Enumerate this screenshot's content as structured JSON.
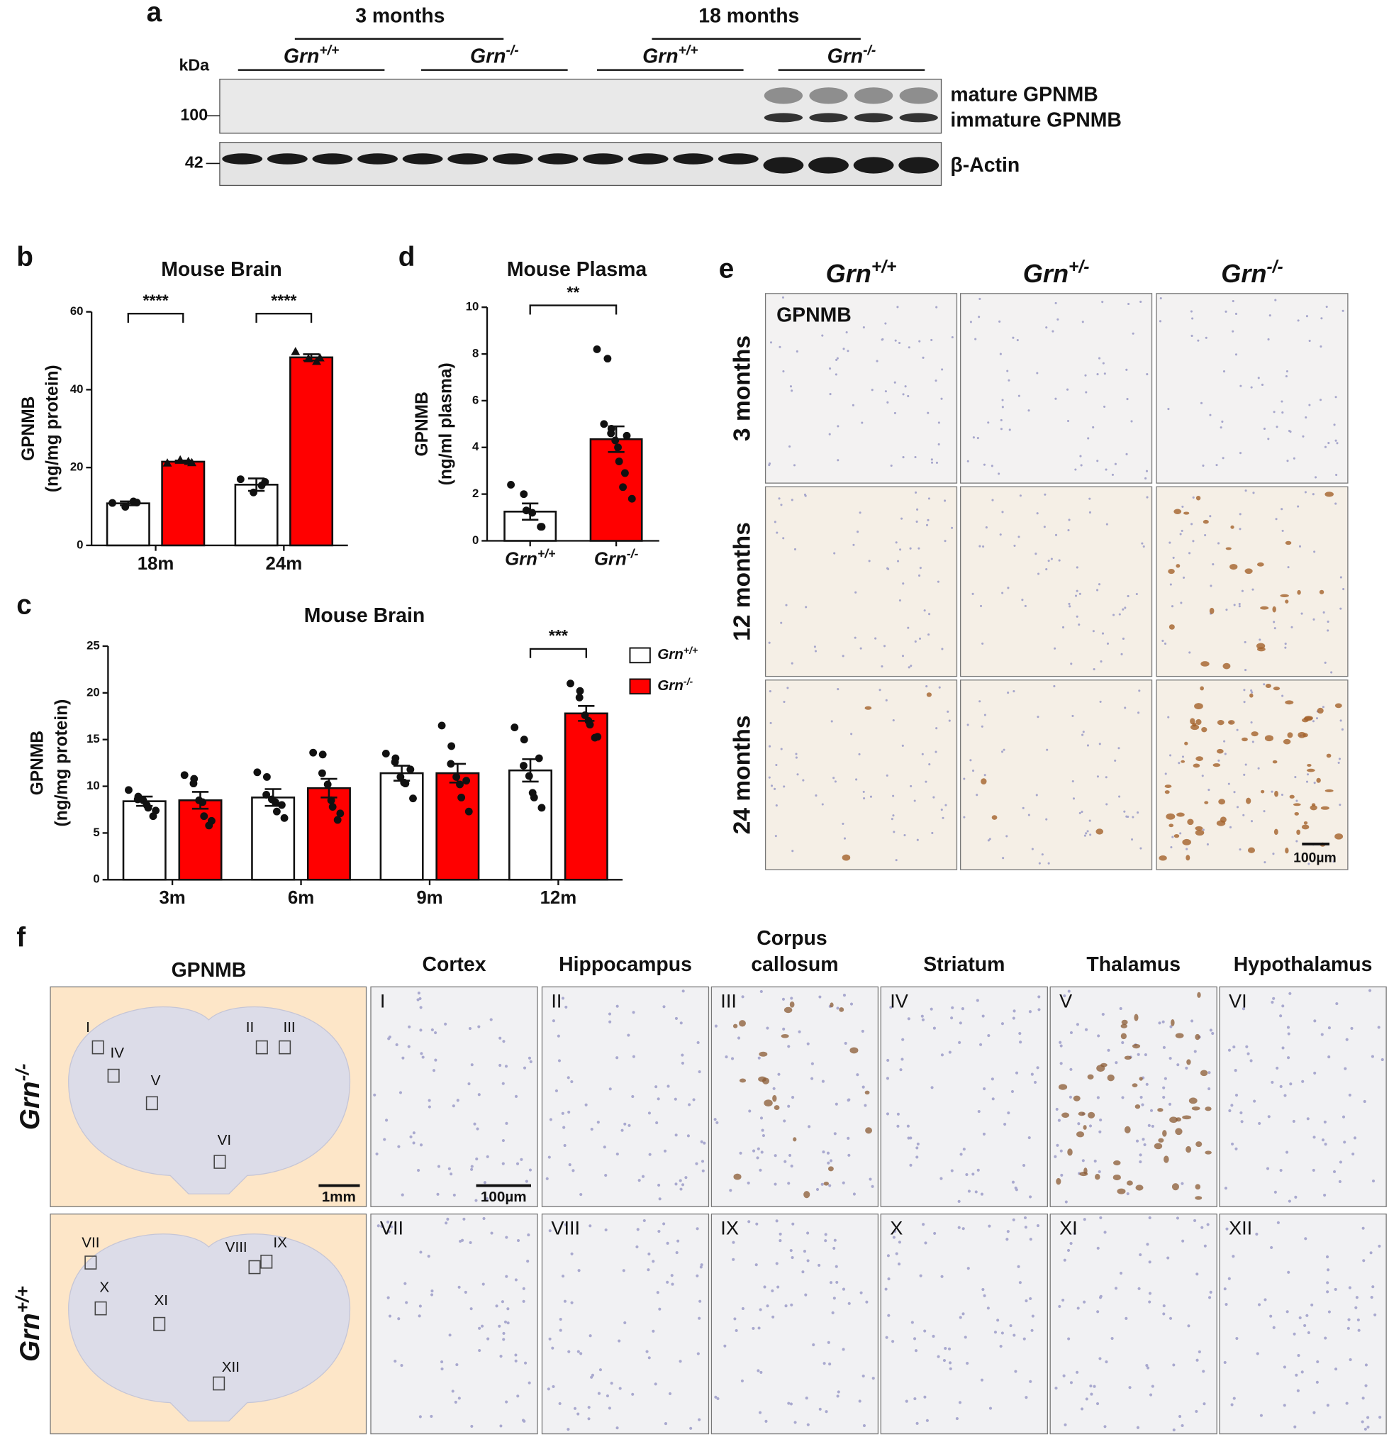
{
  "panel_labels": [
    "a",
    "b",
    "c",
    "d",
    "e",
    "f"
  ],
  "blot": {
    "kda": "kDa",
    "groups": [
      "3 months",
      "18 months"
    ],
    "genotypes": [
      "Grn+/+",
      "Grn-/-",
      "Grn+/+",
      "Grn-/-"
    ],
    "markers": [
      "100",
      "42"
    ],
    "bands": [
      "mature GPNMB",
      "immature GPNMB",
      "β-Actin"
    ]
  },
  "chart_data": [
    {
      "type": "bar",
      "title": "Mouse Brain",
      "y_label": [
        "GPNMB",
        "(ng/mg protein)"
      ],
      "categories": [
        "18m",
        "24m"
      ],
      "series": [
        {
          "color": "#ffffff",
          "marker": "circle",
          "values": [
            10.8,
            15.6
          ],
          "errors": [
            0.5,
            1.6
          ],
          "points": [
            [
              10.9,
              9.9,
              11.3,
              11.0
            ],
            [
              17.0,
              13.6,
              15.4,
              16.3
            ]
          ]
        },
        {
          "color": "#ff0000",
          "marker": "triangle",
          "values": [
            21.5,
            48.3
          ],
          "errors": [
            0.3,
            0.8
          ],
          "points": [
            [
              21.2,
              22.0,
              21.6,
              21.3
            ],
            [
              49.8,
              48.0,
              47.3,
              48.2
            ]
          ]
        }
      ],
      "significance": [
        "****",
        "****"
      ],
      "ylim": [
        0,
        60
      ],
      "yticks": [
        0,
        20,
        40,
        60
      ],
      "legend": false
    },
    {
      "type": "bar",
      "title": "Mouse Brain",
      "y_label": [
        "GPNMB",
        "(ng/mg protein)"
      ],
      "categories": [
        "3m",
        "6m",
        "9m",
        "12m"
      ],
      "series": [
        {
          "name": "Grn+/+",
          "color": "#ffffff",
          "marker": "circle",
          "values": [
            8.4,
            8.8,
            11.4,
            11.7
          ],
          "errors": [
            0.5,
            0.9,
            0.8,
            1.2
          ],
          "points": [
            [
              9.6,
              8.9,
              8.6,
              8.5,
              8.0,
              7.7,
              7.4,
              6.8
            ],
            [
              11.5,
              11.0,
              9.1,
              8.6,
              8.3,
              7.3,
              6.6,
              8.0
            ],
            [
              13.5,
              13.0,
              12.6,
              11.0,
              10.4,
              10.3,
              8.7,
              11.8
            ],
            [
              16.3,
              15.0,
              12.2,
              11.1,
              9.3,
              8.8,
              7.7,
              13.0
            ]
          ]
        },
        {
          "name": "Grn-/-",
          "color": "#ff0000",
          "marker": "circle",
          "values": [
            8.5,
            9.8,
            11.4,
            17.8
          ],
          "errors": [
            0.9,
            1.0,
            1.0,
            0.8
          ],
          "points": [
            [
              11.2,
              10.8,
              10.3,
              8.5,
              8.3,
              6.8,
              6.3,
              5.8
            ],
            [
              13.6,
              13.4,
              11.4,
              10.2,
              8.5,
              7.8,
              7.1,
              6.4
            ],
            [
              16.5,
              14.3,
              12.4,
              11.0,
              10.2,
              8.8,
              7.3,
              10.6
            ],
            [
              21.0,
              20.2,
              19.5,
              17.6,
              17.0,
              16.6,
              15.3,
              15.2
            ]
          ]
        }
      ],
      "significance": [
        null,
        null,
        null,
        "***"
      ],
      "ylim": [
        0,
        25
      ],
      "yticks": [
        0,
        5,
        10,
        15,
        20,
        25
      ],
      "legend": true
    },
    {
      "type": "bar",
      "title": "Mouse Plasma",
      "y_label": [
        "GPNMB",
        "(ng/ml plasma)"
      ],
      "categories": [
        "Grn+/+",
        "Grn-/-"
      ],
      "series": [
        {
          "colors": [
            "#ffffff",
            "#ff0000"
          ],
          "marker": "circle",
          "values": [
            1.25,
            4.35
          ],
          "errors": [
            0.35,
            0.55
          ],
          "points": [
            [
              2.4,
              2.0,
              1.3,
              1.2,
              0.6,
              0.6
            ],
            [
              8.2,
              7.8,
              5.0,
              4.8,
              4.6,
              4.3,
              4.0,
              3.4,
              2.9,
              2.3,
              1.8,
              4.5
            ]
          ]
        }
      ],
      "significance": "**",
      "ylim": [
        0,
        10
      ],
      "yticks": [
        0,
        2,
        4,
        6,
        8,
        10
      ],
      "legend": false
    }
  ],
  "ihc_e": {
    "columns": [
      "Grn+/+",
      "Grn+/-",
      "Grn-/-"
    ],
    "rows": [
      "3 months",
      "12 months",
      "24 months"
    ],
    "stain": "GPNMB",
    "scale": "100µm"
  },
  "ihc_f": {
    "stain": "GPNMB",
    "regions": [
      "Cortex",
      "Hippocampus",
      "Corpus callosum",
      "Striatum",
      "Thalamus",
      "Hypothalamus"
    ],
    "rows": [
      "Grn-/-",
      "Grn+/+"
    ],
    "numerals": [
      "I",
      "II",
      "III",
      "IV",
      "V",
      "VI",
      "VII",
      "VIII",
      "IX",
      "X",
      "XI",
      "XII"
    ],
    "scale_overview": "1mm",
    "scale_detail": "100µm"
  }
}
